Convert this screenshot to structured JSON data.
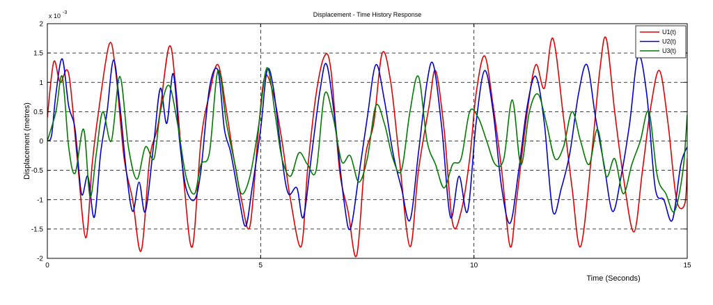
{
  "chart_data": {
    "type": "line",
    "title": "Displacement - Time History Response",
    "xlabel": "Time (Seconds)",
    "ylabel": "Displacement (metres)",
    "y_exponent_label": "x 10",
    "y_exponent_power": "-3",
    "xlim": [
      0,
      15
    ],
    "ylim": [
      -2,
      2
    ],
    "xticks": [
      "0",
      "5",
      "10",
      "15"
    ],
    "yticks": [
      "-2",
      "-1.5",
      "-1",
      "-0.5",
      "0",
      "0.5",
      "1",
      "1.5",
      "2"
    ],
    "grid": true,
    "legend_position": "top-right",
    "series": [
      {
        "name": "U1(t)",
        "color": "#e00000",
        "x": [
          0,
          0.15,
          0.3,
          0.5,
          0.7,
          0.9,
          1.05,
          1.2,
          1.45,
          1.6,
          1.8,
          2.0,
          2.2,
          2.4,
          2.6,
          2.85,
          3.0,
          3.2,
          3.4,
          3.6,
          3.8,
          4.0,
          4.2,
          4.35,
          4.55,
          4.75,
          4.95,
          5.1,
          5.3,
          5.5,
          5.7,
          5.95,
          6.1,
          6.3,
          6.5,
          6.65,
          6.85,
          7.05,
          7.25,
          7.45,
          7.65,
          7.85,
          8.05,
          8.25,
          8.5,
          8.7,
          8.95,
          9.1,
          9.3,
          9.5,
          9.7,
          9.9,
          10.05,
          10.25,
          10.45,
          10.65,
          10.85,
          11.0,
          11.25,
          11.45,
          11.65,
          11.85,
          12.1,
          12.3,
          12.5,
          12.75,
          12.95,
          13.1,
          13.3,
          13.5,
          13.75,
          13.95,
          14.15,
          14.35,
          14.55,
          14.75,
          14.95,
          15.0
        ],
        "y": [
          0.4,
          1.35,
          1.0,
          1.15,
          -0.3,
          -1.65,
          -0.4,
          0.5,
          1.65,
          1.2,
          -0.3,
          -1.0,
          -1.87,
          -0.3,
          0.3,
          1.6,
          1.0,
          -0.7,
          -1.8,
          0.0,
          0.8,
          1.3,
          0.5,
          -0.2,
          -1.0,
          -1.45,
          0.2,
          1.1,
          0.8,
          0.0,
          -1.0,
          -1.8,
          -0.5,
          0.8,
          1.45,
          1.2,
          -0.5,
          -1.2,
          -1.95,
          -0.3,
          0.3,
          1.5,
          1.0,
          -0.3,
          -1.8,
          -0.5,
          0.6,
          1.2,
          0.2,
          -1.4,
          -1.2,
          -0.3,
          0.8,
          1.45,
          0.6,
          -0.5,
          -1.8,
          -1.0,
          0.5,
          1.3,
          0.9,
          1.75,
          0.4,
          -0.8,
          -1.8,
          -0.3,
          1.2,
          1.75,
          0.5,
          -0.6,
          -1.55,
          -0.5,
          0.6,
          1.2,
          0.3,
          -1.0,
          -1.05,
          -0.3
        ]
      },
      {
        "name": "U2(t)",
        "color": "#0000cc",
        "x": [
          0,
          0.1,
          0.2,
          0.35,
          0.5,
          0.65,
          0.8,
          0.95,
          1.1,
          1.25,
          1.4,
          1.55,
          1.7,
          1.85,
          2.0,
          2.15,
          2.3,
          2.5,
          2.65,
          2.8,
          2.95,
          3.1,
          3.25,
          3.45,
          3.6,
          3.8,
          4.0,
          4.15,
          4.3,
          4.5,
          4.65,
          4.8,
          5.0,
          5.15,
          5.3,
          5.5,
          5.65,
          5.85,
          6.0,
          6.2,
          6.4,
          6.55,
          6.75,
          6.95,
          7.1,
          7.3,
          7.5,
          7.7,
          7.9,
          8.1,
          8.3,
          8.5,
          8.7,
          8.9,
          9.05,
          9.25,
          9.45,
          9.65,
          9.85,
          10.05,
          10.25,
          10.45,
          10.65,
          10.85,
          11.05,
          11.25,
          11.45,
          11.65,
          11.85,
          12.05,
          12.25,
          12.45,
          12.65,
          12.85,
          13.05,
          13.25,
          13.45,
          13.65,
          13.85,
          14.05,
          14.25,
          14.45,
          14.65,
          14.85,
          15.0
        ],
        "y": [
          0.0,
          0.1,
          0.8,
          1.4,
          0.6,
          0.2,
          -0.9,
          -0.6,
          -1.3,
          -0.2,
          0.5,
          1.38,
          0.6,
          -0.5,
          -1.2,
          -0.7,
          -1.2,
          0.0,
          0.9,
          0.3,
          1.15,
          0.0,
          -0.8,
          -1.0,
          -0.5,
          0.9,
          1.2,
          0.2,
          -0.2,
          -1.0,
          -1.45,
          -0.8,
          0.2,
          1.2,
          0.9,
          -0.3,
          -0.9,
          -0.8,
          -1.3,
          -0.2,
          0.9,
          1.3,
          0.3,
          -1.0,
          -1.5,
          -0.6,
          0.4,
          1.3,
          0.7,
          -0.2,
          -0.8,
          -1.35,
          -0.2,
          1.0,
          1.3,
          0.2,
          -1.3,
          -0.6,
          -1.2,
          0.3,
          1.2,
          0.5,
          -0.8,
          -1.4,
          -0.5,
          0.6,
          1.1,
          0.3,
          -1.2,
          -0.8,
          -0.2,
          0.8,
          1.3,
          0.4,
          -0.4,
          -1.2,
          -0.6,
          0.3,
          1.45,
          0.8,
          -0.8,
          -1.0,
          -1.35,
          -0.4,
          -0.1
        ]
      },
      {
        "name": "U3(t)",
        "color": "#007a00",
        "x": [
          0,
          0.2,
          0.35,
          0.5,
          0.65,
          0.85,
          1.0,
          1.15,
          1.3,
          1.5,
          1.7,
          1.9,
          2.1,
          2.3,
          2.5,
          2.65,
          2.85,
          3.05,
          3.25,
          3.45,
          3.6,
          3.8,
          4.0,
          4.2,
          4.4,
          4.55,
          4.75,
          4.95,
          5.15,
          5.35,
          5.5,
          5.7,
          5.9,
          6.1,
          6.3,
          6.5,
          6.7,
          6.9,
          7.1,
          7.3,
          7.5,
          7.7,
          7.9,
          8.1,
          8.3,
          8.5,
          8.7,
          8.9,
          9.1,
          9.3,
          9.5,
          9.7,
          9.9,
          10.1,
          10.3,
          10.5,
          10.7,
          10.9,
          11.1,
          11.3,
          11.5,
          11.7,
          11.9,
          12.1,
          12.3,
          12.5,
          12.7,
          12.9,
          13.1,
          13.3,
          13.5,
          13.7,
          13.9,
          14.1,
          14.3,
          14.5,
          14.7,
          14.9,
          15.0
        ],
        "y": [
          0.0,
          0.5,
          1.1,
          -0.1,
          -0.55,
          0.2,
          -0.95,
          -0.2,
          0.5,
          0.0,
          1.1,
          -0.1,
          -0.65,
          -0.1,
          -0.3,
          0.5,
          0.95,
          0.3,
          -0.6,
          -0.9,
          -0.4,
          -0.2,
          1.2,
          0.3,
          -0.4,
          -0.9,
          -0.6,
          0.25,
          1.25,
          0.4,
          -0.3,
          -0.6,
          -0.2,
          -0.4,
          -0.5,
          0.8,
          0.4,
          -0.35,
          -0.25,
          -0.7,
          -0.3,
          0.6,
          0.3,
          -0.3,
          -0.5,
          0.5,
          1.1,
          0.0,
          -0.4,
          -0.8,
          -0.4,
          -0.3,
          0.5,
          0.4,
          0.0,
          -0.4,
          -0.3,
          0.7,
          -0.4,
          0.5,
          0.8,
          0.3,
          -0.3,
          -0.1,
          0.5,
          0.0,
          -0.4,
          0.2,
          -0.6,
          -0.3,
          -0.9,
          -0.4,
          0.0,
          0.5,
          -0.6,
          -0.9,
          -1.2,
          -0.5,
          0.45
        ]
      }
    ]
  }
}
